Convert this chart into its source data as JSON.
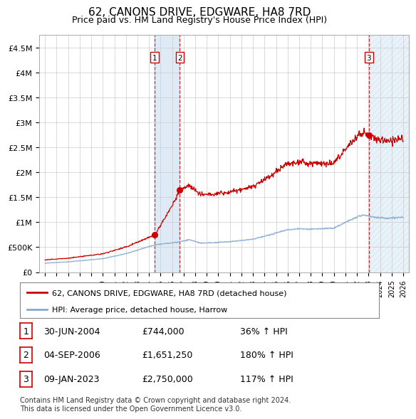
{
  "title": "62, CANONS DRIVE, EDGWARE, HA8 7RD",
  "subtitle": "Price paid vs. HM Land Registry's House Price Index (HPI)",
  "title_fontsize": 11,
  "subtitle_fontsize": 9,
  "background_color": "#ffffff",
  "grid_color": "#cccccc",
  "hpi_color": "#88aacc",
  "price_color": "#cc0000",
  "sale1_date": 2004.5,
  "sale1_price": 744000,
  "sale2_date": 2006.67,
  "sale2_price": 1651250,
  "sale3_date": 2023.03,
  "sale3_price": 2750000,
  "ylim": [
    0,
    4750000
  ],
  "xlim_start": 1994.5,
  "xlim_end": 2026.5,
  "yticks": [
    0,
    500000,
    1000000,
    1500000,
    2000000,
    2500000,
    3000000,
    3500000,
    4000000,
    4500000
  ],
  "ytick_labels": [
    "£0",
    "£500K",
    "£1M",
    "£1.5M",
    "£2M",
    "£2.5M",
    "£3M",
    "£3.5M",
    "£4M",
    "£4.5M"
  ],
  "xtick_years": [
    1995,
    1996,
    1997,
    1998,
    1999,
    2000,
    2001,
    2002,
    2003,
    2004,
    2005,
    2006,
    2007,
    2008,
    2009,
    2010,
    2011,
    2012,
    2013,
    2014,
    2015,
    2016,
    2017,
    2018,
    2019,
    2020,
    2021,
    2022,
    2023,
    2024,
    2025,
    2026
  ],
  "legend_line1": "62, CANONS DRIVE, EDGWARE, HA8 7RD (detached house)",
  "legend_line2": "HPI: Average price, detached house, Harrow",
  "table_row1": [
    "1",
    "30-JUN-2004",
    "£744,000",
    "36% ↑ HPI"
  ],
  "table_row2": [
    "2",
    "04-SEP-2006",
    "£1,651,250",
    "180% ↑ HPI"
  ],
  "table_row3": [
    "3",
    "09-JAN-2023",
    "£2,750,000",
    "117% ↑ HPI"
  ],
  "footnote": "Contains HM Land Registry data © Crown copyright and database right 2024.\nThis data is licensed under the Open Government Licence v3.0."
}
